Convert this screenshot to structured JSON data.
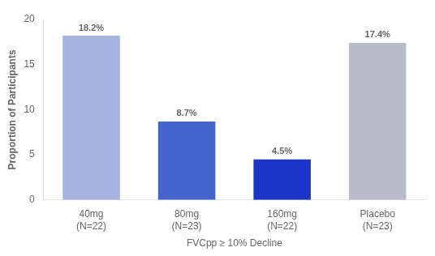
{
  "chart_data": {
    "type": "bar",
    "categories": [
      "40mg\n(N=22)",
      "80mg\n(N=23)",
      "160mg\n(N=22)",
      "Placebo\n(N=23)"
    ],
    "values": [
      18.2,
      8.7,
      4.5,
      17.4
    ],
    "value_labels": [
      "18.2%",
      "8.7%",
      "4.5%",
      "17.4%"
    ],
    "data_labels": true,
    "colors": [
      "#a8b4e0",
      "#4466cc",
      "#1c35c8",
      "#b8bcc8"
    ],
    "ylabel": "Proportion of Participants",
    "xlabel": "FVCpp ≥ 10% Decline",
    "ylim": [
      0,
      20
    ],
    "yticks": [
      0,
      5,
      10,
      15,
      20
    ],
    "grid": false
  }
}
